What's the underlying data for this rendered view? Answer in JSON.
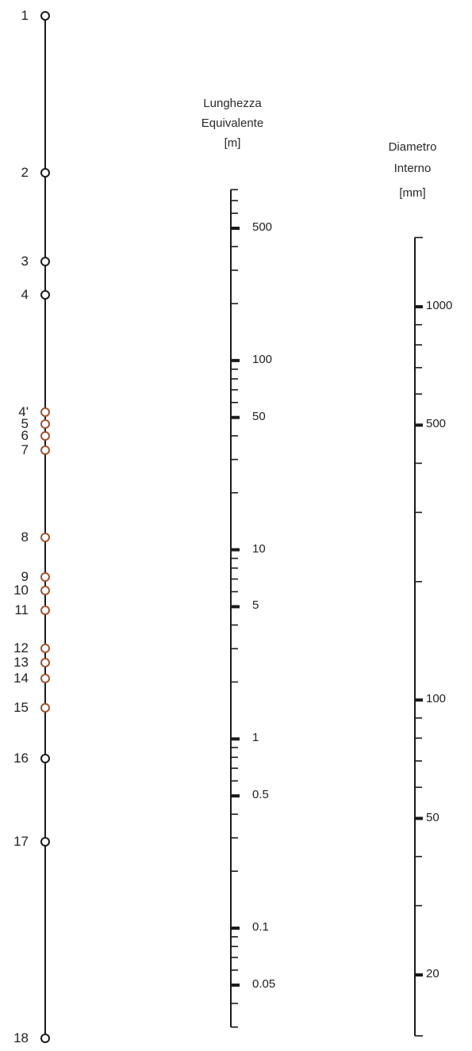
{
  "fitting_scale": {
    "points": [
      "1",
      "2",
      "3",
      "4",
      "4'",
      "5",
      "6",
      "7",
      "8",
      "9",
      "10",
      "11",
      "12",
      "13",
      "14",
      "15",
      "16",
      "17",
      "18"
    ],
    "point_color": "#a0522d"
  },
  "length_scale": {
    "title_line1": "Lunghezza",
    "title_line2": "Equivalente",
    "unit": "[m]",
    "range": [
      0.03,
      800
    ],
    "scale": "log",
    "labels": [
      "500",
      "100",
      "50",
      "10",
      "5",
      "1",
      "0.5",
      "0.1",
      "0.05"
    ],
    "label_values": [
      500,
      100,
      50,
      10,
      5,
      1,
      0.5,
      0.1,
      0.05
    ]
  },
  "diameter_scale": {
    "title_line1": "Diametro",
    "title_line2": "Interno",
    "unit": "[mm]",
    "range": [
      14,
      1500
    ],
    "scale": "log",
    "labels": [
      "1000",
      "500",
      "100",
      "50",
      "20"
    ],
    "label_values": [
      1000,
      500,
      100,
      50,
      20
    ]
  }
}
